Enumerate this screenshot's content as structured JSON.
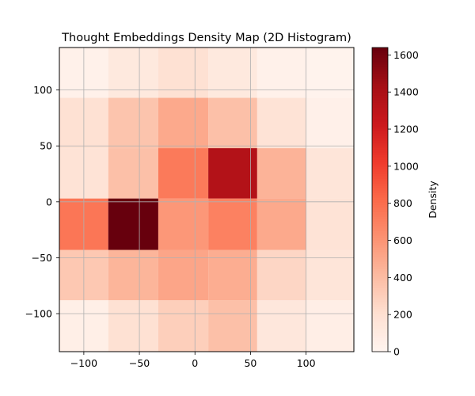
{
  "chart_data": {
    "type": "heatmap",
    "title": "Thought Embeddings Density Map (2D Histogram)",
    "xlabel": "",
    "ylabel": "",
    "colorbar_label": "Density",
    "xlim": [
      -122,
      143
    ],
    "ylim": [
      -134,
      138
    ],
    "x_edges": [
      -122,
      -78,
      -33,
      12,
      56,
      100,
      143
    ],
    "y_edges": [
      -134,
      -88,
      -43,
      3,
      48,
      93,
      138
    ],
    "values": [
      [
        60,
        200,
        300,
        380,
        140,
        70
      ],
      [
        340,
        440,
        520,
        480,
        260,
        160
      ],
      [
        760,
        1640,
        590,
        700,
        500,
        180
      ],
      [
        180,
        380,
        740,
        1360,
        450,
        160
      ],
      [
        200,
        360,
        500,
        380,
        180,
        50
      ],
      [
        40,
        120,
        200,
        120,
        40,
        20
      ]
    ],
    "x_ticks": [
      -100,
      -50,
      0,
      50,
      100
    ],
    "x_tick_labels": [
      "−100",
      "−50",
      "0",
      "50",
      "100"
    ],
    "y_ticks": [
      -100,
      -50,
      0,
      50,
      100
    ],
    "y_tick_labels": [
      "−100",
      "−50",
      "0",
      "50",
      "100"
    ],
    "colorbar_ticks": [
      0,
      200,
      400,
      600,
      800,
      1000,
      1200,
      1400,
      1600
    ],
    "colorbar_tick_labels": [
      "0",
      "200",
      "400",
      "600",
      "800",
      "1000",
      "1200",
      "1400",
      "1600"
    ],
    "colorbar_range": [
      0,
      1640
    ],
    "colormap": "Reds",
    "colormap_stops": [
      "#fff5f0",
      "#fee0d2",
      "#fcbba1",
      "#fc9272",
      "#fb6a4a",
      "#ef3b2c",
      "#cb181d",
      "#a50f15",
      "#67000d"
    ],
    "grid": true,
    "grid_color": "#b0b0b0"
  }
}
